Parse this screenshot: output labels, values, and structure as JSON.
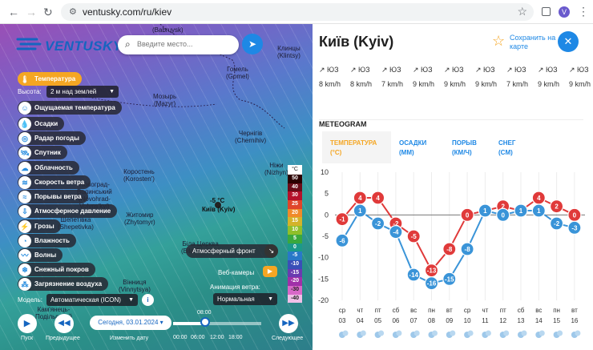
{
  "browser": {
    "url": "ventusky.com/ru/kiev",
    "avatar_letter": "V"
  },
  "map": {
    "logo": "VENTUSKY",
    "search_placeholder": "Введите место...",
    "layers": [
      {
        "label": "Температура",
        "icon": "thermometer-icon",
        "glyph": "🌡",
        "active": true
      },
      {
        "label": "Ощущаемая температура",
        "icon": "feels-like-icon",
        "glyph": "☺",
        "active": false
      },
      {
        "label": "Осадки",
        "icon": "droplet-icon",
        "glyph": "💧",
        "active": false
      },
      {
        "label": "Радар погоды",
        "icon": "radar-icon",
        "glyph": "◎",
        "active": false
      },
      {
        "label": "Спутник",
        "icon": "satellite-icon",
        "glyph": "🛰",
        "active": false
      },
      {
        "label": "Облачность",
        "icon": "cloud-icon",
        "glyph": "☁",
        "active": false
      },
      {
        "label": "Скорость ветра",
        "icon": "wind-icon",
        "glyph": "≋",
        "active": false
      },
      {
        "label": "Порывы ветра",
        "icon": "gust-icon",
        "glyph": "≈",
        "active": false
      },
      {
        "label": "Атмосферное давление",
        "icon": "pressure-icon",
        "glyph": "⇩",
        "active": false
      },
      {
        "label": "Грозы",
        "icon": "lightning-icon",
        "glyph": "⚡",
        "active": false
      },
      {
        "label": "Влажность",
        "icon": "humidity-icon",
        "glyph": "◔",
        "active": false
      },
      {
        "label": "Волны",
        "icon": "waves-icon",
        "glyph": "〰",
        "active": false
      },
      {
        "label": "Снежный покров",
        "icon": "snowflake-icon",
        "glyph": "❄",
        "active": false
      },
      {
        "label": "Загрязнение воздуха",
        "icon": "pollution-icon",
        "glyph": "⁂",
        "active": false
      }
    ],
    "height_label": "Высота:",
    "height_value": "2 м над землей",
    "model_label": "Модель:",
    "model_value": "Автоматическая (ICON)",
    "info_icon": "i",
    "atmo_front": "Атмосферный фронт",
    "webcams": "Веб-камеры",
    "anim_label": "Анимация ветра:",
    "anim_value": "Нормальная",
    "city_name": "Київ (Kyiv)",
    "city_temp": "-5 °C",
    "places": [
      {
        "name": "(Babruysk)",
        "x": 190,
        "y": 3
      },
      {
        "name": "Клинцы\n(Klintsy)",
        "x": 346,
        "y": 26
      },
      {
        "name": "Гомель\n(Gomel)",
        "x": 282,
        "y": 52
      },
      {
        "name": "Мозырь\n(Mazyr)",
        "x": 191,
        "y": 86
      },
      {
        "name": "Чернігів\n(Chernihiv)",
        "x": 293,
        "y": 132
      },
      {
        "name": "Ніжи\n(Nizhyn)",
        "x": 330,
        "y": 172
      },
      {
        "name": "Коростень\n(Korosten')",
        "x": 154,
        "y": 180
      },
      {
        "name": "Новоград-\nВолинський\n(Novohrad-\nVolyns'kyi)",
        "x": 96,
        "y": 196
      },
      {
        "name": "Житомир\n(Zhytomyr)",
        "x": 155,
        "y": 234
      },
      {
        "name": "Шепетівка\n(Shepetivka)",
        "x": 72,
        "y": 240
      },
      {
        "name": "Біла Церква\n(Bila Tserkva)",
        "x": 226,
        "y": 270
      },
      {
        "name": "Вінниця\n(Vinnytsya)",
        "x": 148,
        "y": 318
      },
      {
        "name": "Кам'янець-\nПодільський",
        "x": 44,
        "y": 352
      }
    ],
    "legend_unit": "°C",
    "legend": [
      {
        "v": "50",
        "c": "#2b0000"
      },
      {
        "v": "40",
        "c": "#6b0d19"
      },
      {
        "v": "30",
        "c": "#b5112a"
      },
      {
        "v": "25",
        "c": "#e0452a"
      },
      {
        "v": "20",
        "c": "#f08a2a"
      },
      {
        "v": "15",
        "c": "#d4b32a"
      },
      {
        "v": "10",
        "c": "#8fbf2a"
      },
      {
        "v": "5",
        "c": "#3aa83c"
      },
      {
        "v": "0",
        "c": "#1b9a8a"
      },
      {
        "v": "-5",
        "c": "#2878c8"
      },
      {
        "v": "-10",
        "c": "#3a4fb8"
      },
      {
        "v": "-15",
        "c": "#6a3ab0"
      },
      {
        "v": "-20",
        "c": "#a030a8"
      },
      {
        "v": "-30",
        "c": "#d868c8"
      },
      {
        "v": "-40",
        "c": "#f0c0e8"
      }
    ],
    "bottom": {
      "play": "Пуск",
      "prev": "Предыдущее",
      "date_value": "Сегодня, 03.01.2024",
      "date_label": "Изменить дату",
      "time_current": "08:00",
      "times": [
        "00:00",
        "06:00",
        "12:00",
        "18:00"
      ],
      "next": "Следующее"
    }
  },
  "panel": {
    "title": "Київ (Kyiv)",
    "favorite": "Сохранить на карте",
    "wind_dirs": [
      "ЮЗ",
      "ЮЗ",
      "ЮЗ",
      "ЮЗ",
      "ЮЗ",
      "ЮЗ",
      "ЮЗ",
      "ЮЗ",
      "ЮЗ"
    ],
    "wind_speeds": [
      "8 km/h",
      "8 km/h",
      "7 km/h",
      "9 km/h",
      "9 km/h",
      "9 km/h",
      "7 km/h",
      "9 km/h",
      "9 km/h"
    ],
    "section": "METEOGRAM",
    "tabs": [
      {
        "label": "ТЕМПЕРАТУРА\n(°C)",
        "active": true
      },
      {
        "label": "ОСАДКИ\n(MM)",
        "active": false
      },
      {
        "label": "ПОРЫВ\n(КМ/Ч)",
        "active": false
      },
      {
        "label": "СНЕГ\n(CM)",
        "active": false
      }
    ],
    "chart_data": {
      "type": "line",
      "y_ticks": [
        10,
        5,
        0,
        -5,
        -10,
        -15,
        -20
      ],
      "ylim": [
        -20,
        10
      ],
      "days": [
        "ср",
        "чт",
        "пт",
        "сб",
        "вс",
        "пн",
        "вт",
        "ср",
        "чт",
        "пт",
        "сб",
        "вс",
        "пн",
        "вт"
      ],
      "dates": [
        "03",
        "04",
        "05",
        "06",
        "07",
        "08",
        "09",
        "10",
        "11",
        "12",
        "13",
        "14",
        "15",
        "16"
      ],
      "series": [
        {
          "color": "#e03a3a",
          "values": [
            -1,
            4,
            4,
            -2,
            -5,
            -13,
            -8,
            0,
            1,
            2,
            1,
            4,
            2,
            0
          ]
        },
        {
          "color": "#3a94d8",
          "values": [
            -6,
            1,
            -2,
            -4,
            -14,
            -16,
            -15,
            -8,
            1,
            0,
            1,
            1,
            -2,
            -3
          ]
        }
      ]
    }
  }
}
